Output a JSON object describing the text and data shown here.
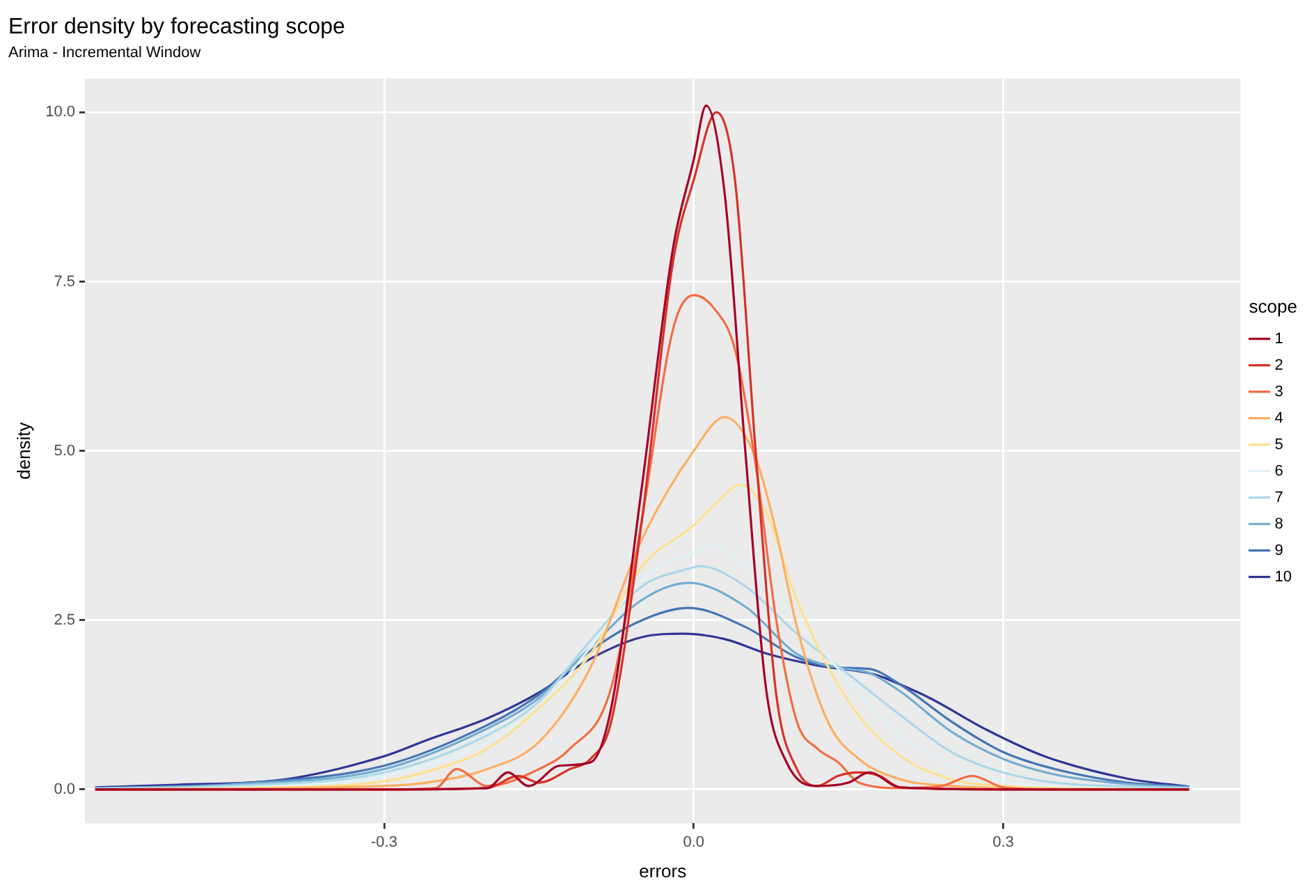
{
  "chart_data": {
    "type": "line",
    "title": "Error density by forecasting scope",
    "subtitle": "Arima - Incremental Window",
    "xlabel": "errors",
    "ylabel": "density",
    "legend_title": "scope",
    "legend": "right",
    "grid": true,
    "marker": "none",
    "line_style": "solid",
    "xlim": [
      -0.59,
      0.53
    ],
    "ylim": [
      -0.5,
      10.5
    ],
    "xticks": [
      -0.3,
      {
        "value": 0,
        "label": "0.0"
      },
      0.3
    ],
    "yticks": [
      {
        "value": 0,
        "label": "0.0"
      },
      2.5,
      {
        "value": 5,
        "label": "5.0"
      },
      7.5,
      {
        "value": 10,
        "label": "10.0"
      }
    ],
    "series": [
      {
        "name": "1",
        "color": "#a50026",
        "x": [
          -0.58,
          -0.3,
          -0.2,
          -0.18,
          -0.16,
          -0.13,
          -0.1,
          -0.08,
          -0.05,
          -0.02,
          0,
          0.012,
          0.03,
          0.05,
          0.07,
          0.09,
          0.12,
          0.15,
          0.17,
          0.2,
          0.3,
          0.48
        ],
        "values": [
          0,
          0,
          0.02,
          0.25,
          0.05,
          0.35,
          0.4,
          1.2,
          4.5,
          8.0,
          9.3,
          10.1,
          8.8,
          5.0,
          1.5,
          0.4,
          0.05,
          0.1,
          0.25,
          0.03,
          0,
          0
        ]
      },
      {
        "name": "2",
        "color": "#d73027",
        "x": [
          -0.58,
          -0.3,
          -0.2,
          -0.17,
          -0.15,
          -0.12,
          -0.1,
          -0.08,
          -0.05,
          -0.02,
          0,
          0.022,
          0.04,
          0.06,
          0.08,
          0.1,
          0.12,
          0.14,
          0.16,
          0.18,
          0.2,
          0.3,
          0.48
        ],
        "values": [
          0,
          0,
          0.02,
          0.2,
          0.1,
          0.3,
          0.45,
          1.0,
          4.0,
          7.8,
          9.0,
          10.0,
          9.0,
          5.0,
          1.4,
          0.3,
          0.05,
          0.2,
          0.25,
          0.2,
          0.03,
          0,
          0
        ]
      },
      {
        "name": "3",
        "color": "#f46d43",
        "x": [
          -0.58,
          -0.3,
          -0.25,
          -0.23,
          -0.2,
          -0.15,
          -0.12,
          -0.08,
          -0.05,
          -0.02,
          0,
          0.02,
          0.04,
          0.06,
          0.08,
          0.1,
          0.12,
          0.14,
          0.16,
          0.2,
          0.24,
          0.27,
          0.3,
          0.35,
          0.48
        ],
        "values": [
          0,
          0,
          0.02,
          0.3,
          0.05,
          0.3,
          0.6,
          1.5,
          4.0,
          6.8,
          7.3,
          7.1,
          6.5,
          4.8,
          2.5,
          1.0,
          0.6,
          0.4,
          0.1,
          0.02,
          0.05,
          0.2,
          0.03,
          0,
          0
        ]
      },
      {
        "name": "4",
        "color": "#fdae61",
        "x": [
          -0.58,
          -0.3,
          -0.25,
          -0.2,
          -0.15,
          -0.1,
          -0.05,
          0,
          0.03,
          0.06,
          0.08,
          0.1,
          0.13,
          0.16,
          0.2,
          0.25,
          0.3,
          0.4,
          0.48
        ],
        "values": [
          0,
          0.05,
          0.12,
          0.3,
          0.7,
          1.8,
          3.7,
          5.0,
          5.5,
          4.9,
          3.8,
          2.4,
          1.0,
          0.45,
          0.15,
          0.05,
          0.02,
          0,
          0
        ]
      },
      {
        "name": "5",
        "color": "#fee090",
        "x": [
          -0.58,
          -0.4,
          -0.3,
          -0.25,
          -0.2,
          -0.15,
          -0.1,
          -0.05,
          0,
          0.02,
          0.045,
          0.07,
          0.1,
          0.15,
          0.2,
          0.25,
          0.3,
          0.4,
          0.48
        ],
        "values": [
          0,
          0.03,
          0.12,
          0.3,
          0.6,
          1.2,
          2.0,
          3.3,
          3.9,
          4.2,
          4.5,
          4.1,
          2.8,
          1.3,
          0.5,
          0.15,
          0.05,
          0.01,
          0
        ]
      },
      {
        "name": "6",
        "color": "#e0f3f8",
        "x": [
          -0.58,
          -0.4,
          -0.3,
          -0.2,
          -0.15,
          -0.1,
          -0.05,
          0,
          0.02,
          0.05,
          0.1,
          0.15,
          0.2,
          0.25,
          0.3,
          0.4,
          0.48
        ],
        "values": [
          0,
          0.05,
          0.2,
          0.7,
          1.2,
          2.1,
          3.1,
          3.5,
          3.6,
          3.3,
          2.5,
          1.6,
          0.8,
          0.35,
          0.12,
          0.02,
          0
        ]
      },
      {
        "name": "7",
        "color": "#abd9e9",
        "x": [
          -0.58,
          -0.45,
          -0.3,
          -0.2,
          -0.15,
          -0.1,
          -0.05,
          0,
          0.005,
          0.05,
          0.1,
          0.15,
          0.2,
          0.25,
          0.3,
          0.35,
          0.45,
          0.48
        ],
        "values": [
          0.01,
          0.05,
          0.25,
          0.8,
          1.3,
          2.2,
          3.0,
          3.28,
          3.3,
          3.0,
          2.3,
          1.7,
          1.1,
          0.55,
          0.25,
          0.1,
          0.03,
          0.02
        ]
      },
      {
        "name": "8",
        "color": "#74add1",
        "x": [
          -0.58,
          -0.45,
          -0.3,
          -0.2,
          -0.15,
          -0.1,
          -0.05,
          -0.005,
          0.05,
          0.1,
          0.14,
          0.17,
          0.2,
          0.25,
          0.3,
          0.35,
          0.42,
          0.48
        ],
        "values": [
          0.02,
          0.07,
          0.3,
          0.9,
          1.35,
          2.1,
          2.8,
          3.05,
          2.7,
          2.0,
          1.8,
          1.72,
          1.45,
          0.85,
          0.45,
          0.22,
          0.08,
          0.03
        ]
      },
      {
        "name": "9",
        "color": "#4575b4",
        "x": [
          -0.58,
          -0.45,
          -0.3,
          -0.2,
          -0.15,
          -0.1,
          -0.05,
          -0.005,
          0.05,
          0.1,
          0.14,
          0.17,
          0.2,
          0.25,
          0.3,
          0.35,
          0.42,
          0.48
        ],
        "values": [
          0.02,
          0.08,
          0.35,
          0.95,
          1.4,
          2.05,
          2.5,
          2.68,
          2.4,
          1.95,
          1.8,
          1.78,
          1.55,
          1.0,
          0.55,
          0.3,
          0.1,
          0.04
        ]
      },
      {
        "name": "10",
        "color": "#313695",
        "x": [
          -0.58,
          -0.5,
          -0.4,
          -0.3,
          -0.26,
          -0.2,
          -0.15,
          -0.1,
          -0.05,
          -0.01,
          0.03,
          0.072,
          0.12,
          0.175,
          0.2,
          0.23,
          0.284,
          0.34,
          0.42,
          0.48
        ],
        "values": [
          0.03,
          0.07,
          0.14,
          0.49,
          0.72,
          1.05,
          1.43,
          1.93,
          2.25,
          2.3,
          2.22,
          2.0,
          1.83,
          1.7,
          1.55,
          1.34,
          0.88,
          0.49,
          0.16,
          0.04
        ]
      }
    ]
  }
}
